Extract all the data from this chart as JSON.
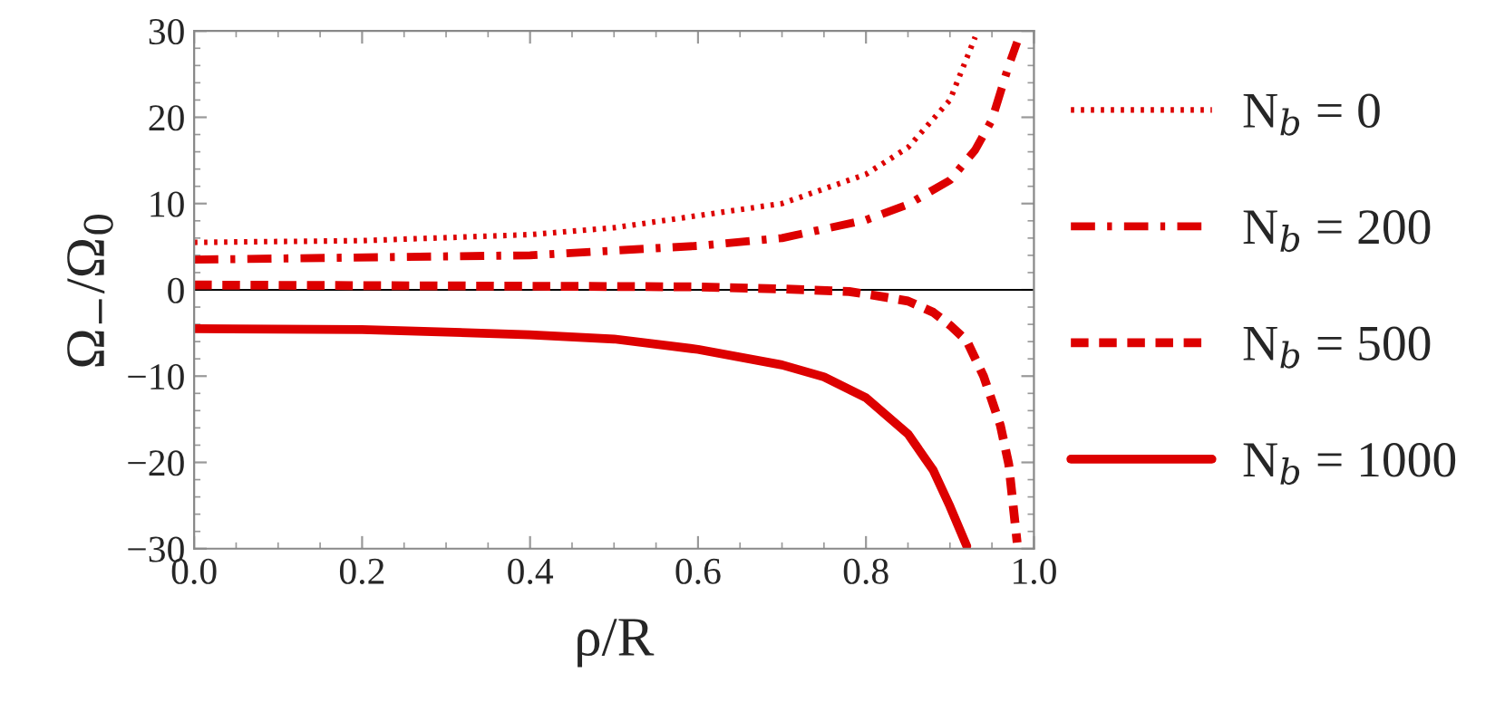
{
  "chart_data": {
    "type": "line",
    "xlabel": "ρ/R",
    "ylabel": "Ω$_{−}$/Ω$_{0}$",
    "xlim": [
      0,
      1
    ],
    "ylim": [
      -30,
      30
    ],
    "xticks": [
      {
        "value": 0,
        "label": "0.0"
      },
      0.2,
      0.4,
      0.6,
      0.8,
      {
        "value": 1,
        "label": "1.0"
      }
    ],
    "yticks": [
      -30,
      -20,
      -10,
      0,
      10,
      20,
      30
    ],
    "grid": false,
    "legend": "right",
    "marker": "none",
    "ref_lines": [
      {
        "axis": "y",
        "value": 0,
        "color": "#000000"
      }
    ],
    "series": [
      {
        "name": "N$_{b}$ = 0",
        "color": "#dd0000",
        "line_style": "dotted",
        "x": [
          0,
          0.2,
          0.4,
          0.5,
          0.6,
          0.7,
          0.8,
          0.85,
          0.9,
          0.93
        ],
        "values": [
          5.5,
          5.7,
          6.4,
          7.2,
          8.6,
          10,
          13.4,
          16.5,
          22,
          29.3
        ]
      },
      {
        "name": "N$_{b}$ = 200",
        "color": "#dd0000",
        "line_style": "dashdot",
        "x": [
          0,
          0.4,
          0.6,
          0.7,
          0.8,
          0.85,
          0.9,
          0.93,
          0.95,
          0.97,
          0.98
        ],
        "values": [
          3.5,
          4.0,
          5.1,
          6.0,
          8.1,
          9.9,
          12.7,
          16.2,
          19.7,
          26,
          28.7
        ]
      },
      {
        "name": "N$_{b}$ = 500",
        "color": "#dd0000",
        "line_style": "dashed",
        "x": [
          0,
          0.6,
          0.7,
          0.78,
          0.82,
          0.85,
          0.88,
          0.9,
          0.92,
          0.94,
          0.96,
          0.97,
          0.98
        ],
        "values": [
          0.56,
          0.35,
          0.1,
          -0.2,
          -0.8,
          -1.3,
          -2.6,
          -4.1,
          -5.9,
          -10,
          -15.7,
          -20.2,
          -29.3
        ]
      },
      {
        "name": "N$_{b}$ = 1000",
        "color": "#dd0000",
        "line_style": "solid",
        "x": [
          0,
          0.2,
          0.4,
          0.5,
          0.6,
          0.7,
          0.75,
          0.8,
          0.85,
          0.88,
          0.9,
          0.92
        ],
        "values": [
          -4.5,
          -4.6,
          -5.2,
          -5.7,
          -6.9,
          -8.7,
          -10.1,
          -12.5,
          -16.7,
          -20.9,
          -25.1,
          -29.7
        ]
      }
    ]
  }
}
